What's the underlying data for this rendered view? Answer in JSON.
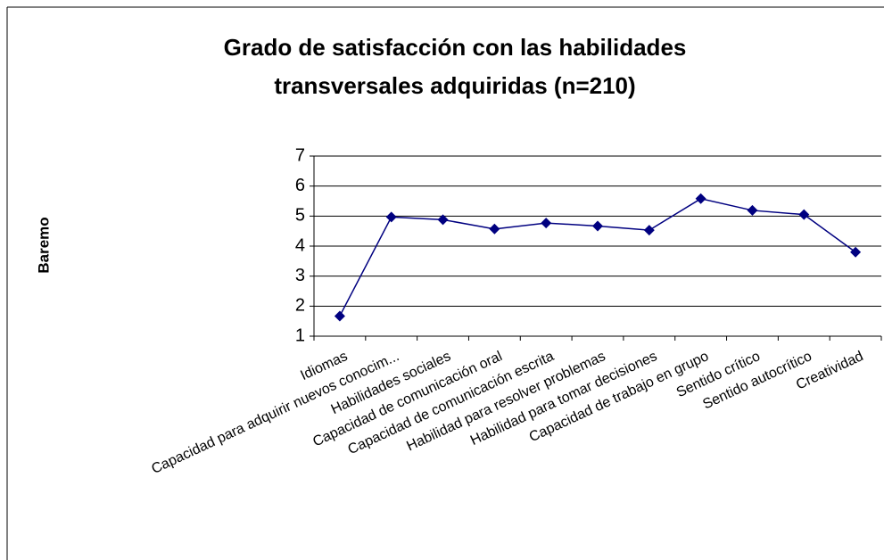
{
  "chart_data": {
    "type": "line",
    "title": [
      "Grado de satisfacción con las habilidades",
      "transversales adquiridas (n=210)"
    ],
    "y_label": "Baremo",
    "categories": [
      "Idiomas",
      "Capacidad para adquirir nuevos conocim...",
      "Habilidades sociales",
      "Capacidad de comunicación oral",
      "Capacidad de comunicación escrita",
      "Habilidad para resolver problemas",
      "Habilidad para tomar decisiones",
      "Capacidad de trabajo en grupo",
      "Sentido crítico",
      "Sentido autocrítico",
      "Creatividad"
    ],
    "values": [
      1.67,
      4.97,
      4.88,
      4.57,
      4.77,
      4.67,
      4.53,
      5.58,
      5.19,
      5.05,
      3.8
    ],
    "color": "#000080",
    "ylim": [
      1,
      7
    ],
    "yticks": [
      1,
      2,
      3,
      4,
      5,
      6,
      7
    ],
    "grid": true
  }
}
